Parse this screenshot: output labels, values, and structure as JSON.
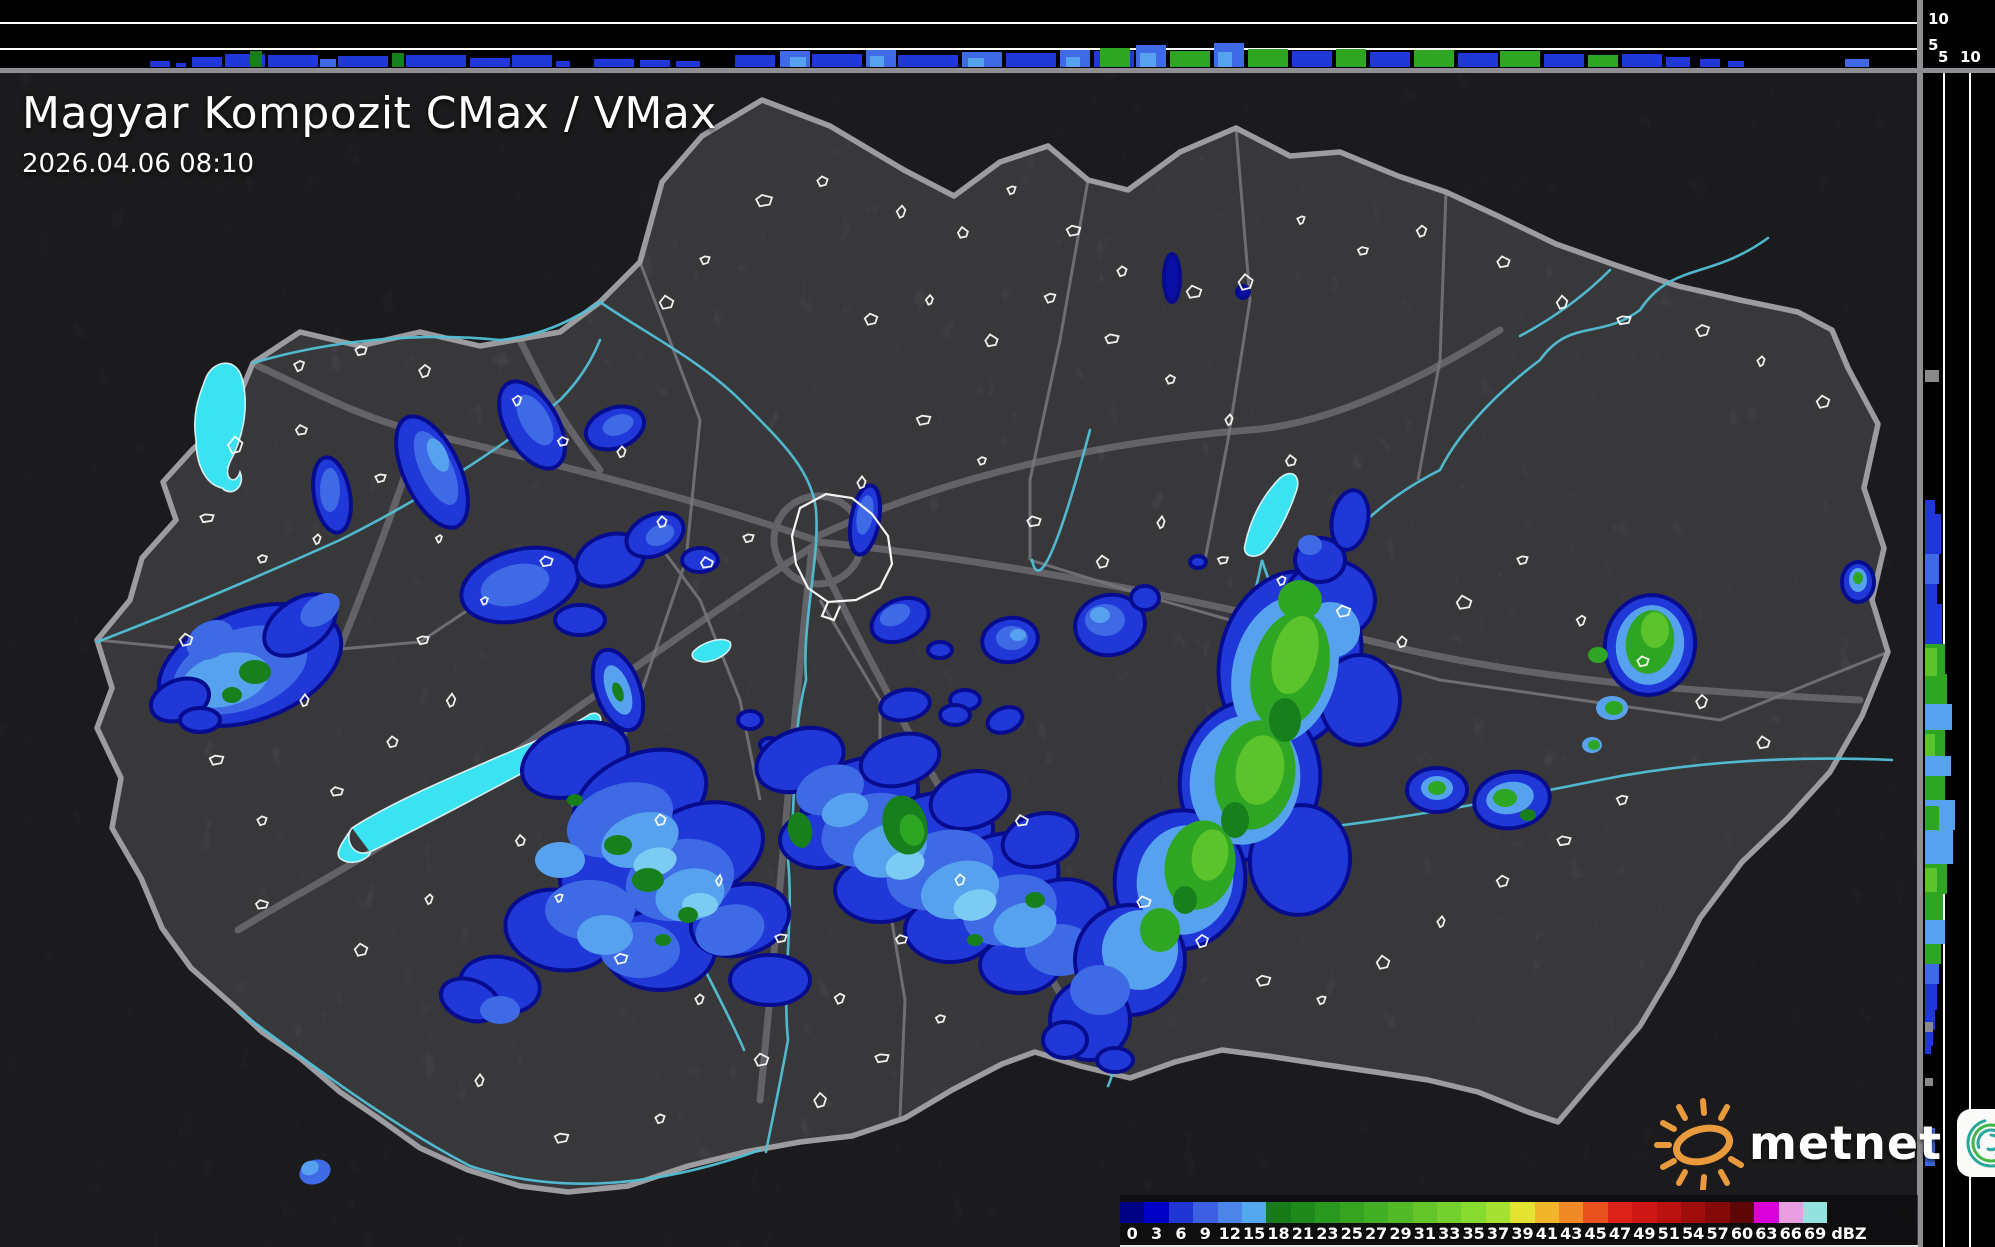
{
  "header": {
    "title": "Magyar Kompozit CMax / VMax",
    "timestamp": "2026.04.06 08:10"
  },
  "top_strip_axis": {
    "tick_10": "10",
    "tick_5": "5"
  },
  "right_strip_axis": {
    "tick_5": "5",
    "tick_10": "10"
  },
  "colorbar": {
    "unit": "dBZ",
    "ticks": [
      "0",
      "3",
      "6",
      "9",
      "12",
      "15",
      "18",
      "21",
      "23",
      "25",
      "27",
      "29",
      "31",
      "33",
      "35",
      "37",
      "39",
      "41",
      "43",
      "45",
      "47",
      "49",
      "51",
      "54",
      "57",
      "60",
      "63",
      "66",
      "69"
    ],
    "colors": [
      "#000082",
      "#0000C6",
      "#2134D4",
      "#3D5FE2",
      "#4E85EA",
      "#54A8EE",
      "#177C17",
      "#1F8A1B",
      "#2A971E",
      "#36A321",
      "#43AF24",
      "#52BA27",
      "#63C52A",
      "#74D02D",
      "#87DA30",
      "#A5E133",
      "#E5E332",
      "#F0B52A",
      "#F18A24",
      "#E9511E",
      "#DC231A",
      "#CE1715",
      "#B91211",
      "#A00D0D",
      "#850909",
      "#5E0505",
      "#D900D9",
      "#E79FE2",
      "#93E2DE"
    ]
  },
  "logos": {
    "metnet_label": "metnet"
  },
  "palette": {
    "echo_navy": "#0A0FA6",
    "echo_blue": "#2038D8",
    "echo_mid_blue": "#3E6AE6",
    "echo_light_blue": "#57A2EE",
    "echo_pale_blue": "#7CCBF3",
    "echo_green_dark": "#17801C",
    "echo_green": "#2FA623",
    "echo_green_bright": "#5BC42C",
    "water": "#3BE3F2",
    "border_gray": "#9C9CA0",
    "grid_white": "#FFFFFF",
    "terrain_inside": "#56565A",
    "terrain_outside": "#2A2A2D",
    "logo_orange": "#E89A3C",
    "logo_teal": "#2AA79B",
    "logo_green": "#43B64A"
  }
}
